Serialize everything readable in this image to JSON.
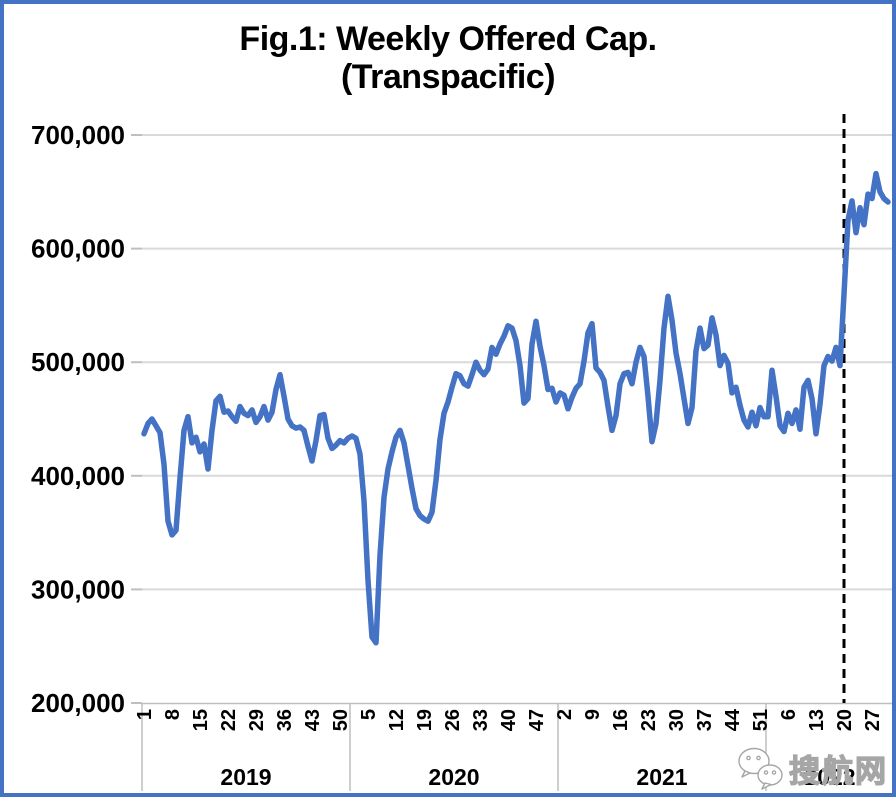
{
  "chart_data": {
    "type": "line",
    "title": "Fig.1: Weekly Offered Cap.",
    "subtitle": "(Transpacific)",
    "xlabel": "",
    "ylabel": "",
    "ylim": [
      200000,
      700000
    ],
    "ytick_step": 100000,
    "ytick_labels": [
      "200,000",
      "300,000",
      "400,000",
      "500,000",
      "600,000",
      "700,000"
    ],
    "grid": "horizontal",
    "legend": "none",
    "line_color": "#4472C4",
    "series_name": "Weekly Offered Capacity (Transpacific)",
    "years": [
      {
        "label": "2019",
        "tick_weeks": [
          1,
          8,
          15,
          22,
          29,
          36,
          43,
          50
        ],
        "values": [
          437000,
          446000,
          450000,
          444000,
          438000,
          410000,
          360000,
          348000,
          352000,
          398000,
          440000,
          452000,
          429000,
          434000,
          421000,
          428000,
          406000,
          440000,
          466000,
          470000,
          456000,
          457000,
          452000,
          448000,
          461000,
          455000,
          453000,
          458000,
          447000,
          452000,
          461000,
          449000,
          456000,
          476000,
          489000,
          470000,
          450000,
          444000,
          442000,
          443000,
          440000,
          426000,
          413000,
          431000,
          453000,
          454000,
          433000,
          424000,
          427000,
          431000,
          429000,
          433000
        ]
      },
      {
        "label": "2020",
        "tick_weeks": [
          5,
          12,
          19,
          26,
          33,
          40,
          47
        ],
        "values": [
          435000,
          433000,
          419000,
          378000,
          308000,
          258000,
          253000,
          330000,
          381000,
          406000,
          421000,
          434000,
          440000,
          429000,
          409000,
          389000,
          371000,
          365000,
          362000,
          360000,
          368000,
          396000,
          432000,
          455000,
          465000,
          478000,
          490000,
          488000,
          481000,
          479000,
          489000,
          500000,
          493000,
          489000,
          494000,
          513000,
          507000,
          516000,
          523000,
          532000,
          530000,
          519000,
          497000,
          464000,
          468000,
          516000,
          536000,
          514000,
          497000,
          476000,
          477000,
          465000
        ]
      },
      {
        "label": "2021",
        "tick_weeks": [
          2,
          9,
          16,
          23,
          30,
          37,
          44,
          51
        ],
        "values": [
          473000,
          471000,
          459000,
          469000,
          477000,
          481000,
          501000,
          526000,
          534000,
          495000,
          491000,
          484000,
          461000,
          440000,
          453000,
          481000,
          490000,
          491000,
          481000,
          500000,
          513000,
          505000,
          470000,
          430000,
          446000,
          484000,
          530000,
          558000,
          537000,
          508000,
          490000,
          468000,
          446000,
          460000,
          510000,
          530000,
          512000,
          515000,
          539000,
          524000,
          497000,
          506000,
          499000,
          473000,
          478000,
          462000,
          449000,
          443000,
          456000,
          444000,
          460000,
          452000
        ]
      },
      {
        "label": "2022",
        "tick_weeks": [
          6,
          13,
          20,
          27
        ],
        "values": [
          452000,
          493000,
          470000,
          444000,
          439000,
          455000,
          446000,
          458000,
          441000,
          478000,
          484000,
          468000,
          437000,
          463000,
          497000,
          505000,
          501000,
          513000,
          497000,
          560000,
          625000,
          642000,
          614000,
          636000,
          621000,
          648000,
          644000,
          666000,
          650000,
          644000,
          641000
        ]
      }
    ],
    "annotation_vline": {
      "year": "2022",
      "week": 20,
      "style": "dashed",
      "color": "#000000"
    }
  },
  "watermark": {
    "text": "搜航网"
  }
}
